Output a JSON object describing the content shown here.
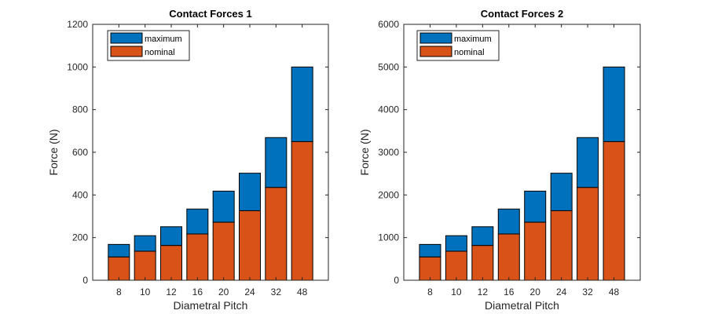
{
  "chart_data": [
    {
      "type": "bar",
      "stacked": true,
      "title": "Contact Forces 1",
      "xlabel": "Diametral Pitch",
      "ylabel": "Force (N)",
      "categories": [
        "8",
        "10",
        "12",
        "16",
        "20",
        "24",
        "32",
        "48"
      ],
      "ylim": [
        0,
        1200
      ],
      "yticks": [
        0,
        200,
        400,
        600,
        800,
        1000,
        1200
      ],
      "legend_position": "top-left",
      "series": [
        {
          "name": "maximum",
          "color": "#0072BD",
          "total_values": [
            168,
            209,
            251,
            334,
            418,
            502,
            669,
            1000
          ]
        },
        {
          "name": "nominal",
          "color": "#D95319",
          "values": [
            109,
            136,
            163,
            217,
            272,
            326,
            435,
            650
          ]
        }
      ]
    },
    {
      "type": "bar",
      "stacked": true,
      "title": "Contact Forces 2",
      "xlabel": "Diametral Pitch",
      "ylabel": "Force (N)",
      "categories": [
        "8",
        "10",
        "12",
        "16",
        "20",
        "24",
        "32",
        "48"
      ],
      "ylim": [
        0,
        6000
      ],
      "yticks": [
        0,
        1000,
        2000,
        3000,
        4000,
        5000,
        6000
      ],
      "legend_position": "top-left",
      "series": [
        {
          "name": "maximum",
          "color": "#0072BD",
          "total_values": [
            840,
            1045,
            1255,
            1670,
            2090,
            2510,
            3345,
            5000
          ]
        },
        {
          "name": "nominal",
          "color": "#D95319",
          "values": [
            545,
            680,
            815,
            1085,
            1360,
            1630,
            2175,
            3250
          ]
        }
      ]
    }
  ]
}
